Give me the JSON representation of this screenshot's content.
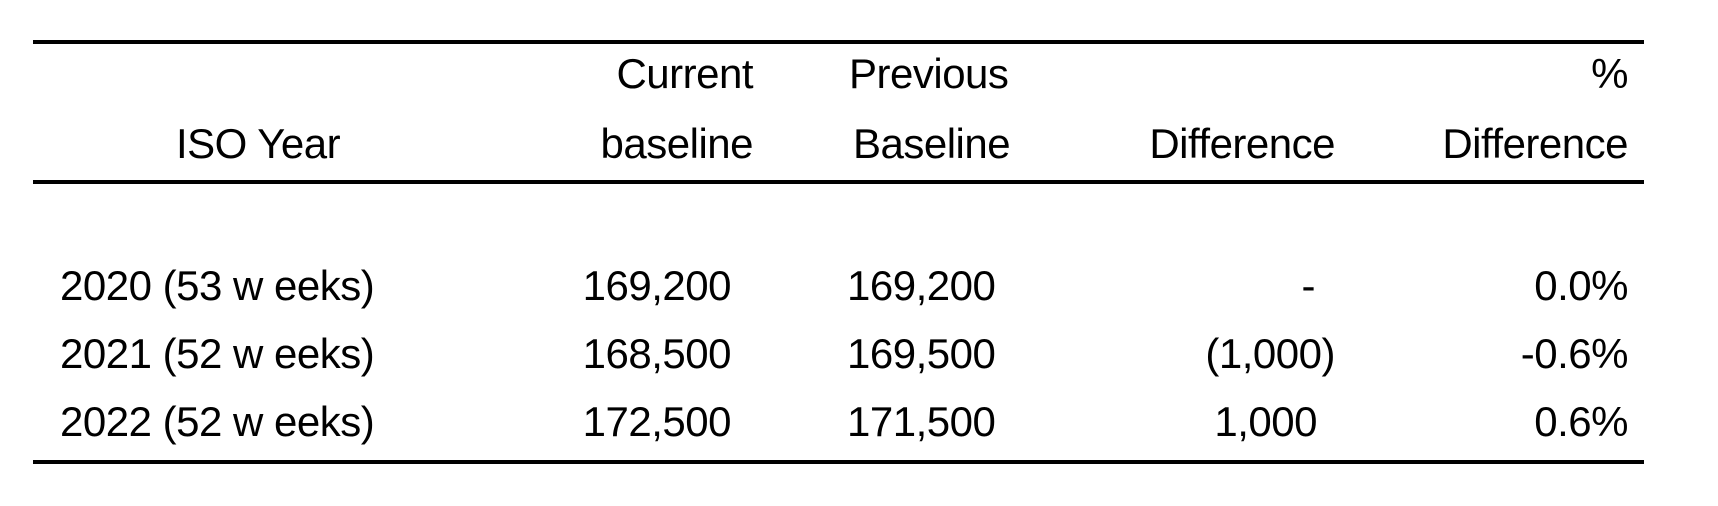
{
  "table": {
    "headers": [
      {
        "line1": "",
        "line2": "ISO Year"
      },
      {
        "line1": "Current",
        "line2": "baseline"
      },
      {
        "line1": "Previous",
        "line2": "Baseline"
      },
      {
        "line1": "",
        "line2": "Difference"
      },
      {
        "line1": "%",
        "line2": "Difference"
      }
    ],
    "rows": [
      [
        "2020 (53 w eeks)",
        "169,200",
        "169,200",
        "-",
        "0.0%"
      ],
      [
        "2021 (52 w eeks)",
        "168,500",
        "169,500",
        "(1,000)",
        "-0.6%"
      ],
      [
        "2022 (52 w eeks)",
        "172,500",
        "171,500",
        "1,000",
        "0.6%"
      ]
    ]
  }
}
